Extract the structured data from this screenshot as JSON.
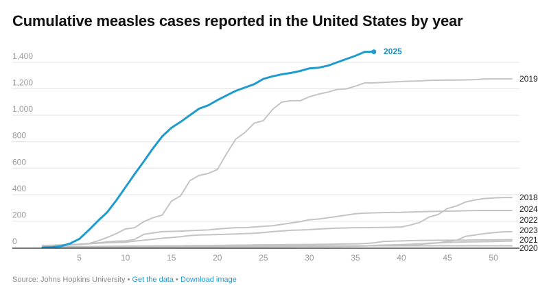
{
  "chart_data": {
    "type": "line",
    "title": "Cumulative measles cases reported in the United States by year",
    "xlabel": "",
    "ylabel": "",
    "xlim": [
      1,
      52
    ],
    "ylim": [
      0,
      1400
    ],
    "x_ticks": [
      "5",
      "10",
      "15",
      "20",
      "25",
      "30",
      "35",
      "40",
      "45",
      "50"
    ],
    "y_ticks": [
      "0",
      "200",
      "400",
      "600",
      "800",
      "1,000",
      "1,200",
      "1,400"
    ],
    "grid": true,
    "highlight_color": "#1f9ccd",
    "other_color": "#c4c4c4",
    "series": [
      {
        "name": "2020",
        "values": [
          2,
          3,
          4,
          5,
          6,
          7,
          8,
          9,
          10,
          11,
          12,
          12,
          12,
          13,
          13,
          13,
          13,
          13,
          13,
          13,
          13,
          13,
          13,
          13,
          13,
          13,
          13,
          13,
          13,
          13,
          13,
          13,
          13,
          13,
          13,
          13,
          13,
          13,
          13,
          13,
          13,
          13,
          13,
          13,
          13,
          13,
          13,
          13,
          13,
          13,
          13,
          13
        ]
      },
      {
        "name": "2021",
        "values": [
          0,
          0,
          1,
          1,
          1,
          2,
          2,
          2,
          2,
          2,
          3,
          3,
          3,
          3,
          3,
          4,
          4,
          4,
          4,
          4,
          5,
          5,
          5,
          5,
          5,
          6,
          6,
          6,
          7,
          7,
          7,
          8,
          8,
          9,
          10,
          12,
          15,
          18,
          20,
          22,
          25,
          28,
          32,
          35,
          38,
          40,
          42,
          43,
          44,
          45,
          47,
          49
        ]
      },
      {
        "name": "2023",
        "values": [
          0,
          1,
          2,
          3,
          4,
          5,
          6,
          7,
          8,
          9,
          10,
          10,
          11,
          12,
          12,
          13,
          14,
          15,
          15,
          16,
          17,
          18,
          18,
          19,
          20,
          20,
          21,
          22,
          22,
          23,
          24,
          25,
          26,
          27,
          28,
          30,
          35,
          45,
          48,
          50,
          52,
          53,
          54,
          55,
          55,
          56,
          56,
          57,
          57,
          57,
          58,
          59
        ]
      },
      {
        "name": "2022",
        "values": [
          2,
          2,
          2,
          3,
          3,
          3,
          3,
          3,
          3,
          4,
          4,
          4,
          4,
          5,
          5,
          5,
          5,
          5,
          5,
          6,
          6,
          6,
          6,
          6,
          7,
          7,
          7,
          8,
          8,
          8,
          9,
          9,
          10,
          11,
          12,
          13,
          14,
          15,
          16,
          18,
          20,
          25,
          30,
          35,
          45,
          55,
          85,
          95,
          105,
          112,
          118,
          120
        ]
      },
      {
        "name": "2024",
        "values": [
          15,
          17,
          20,
          22,
          25,
          28,
          35,
          42,
          48,
          50,
          60,
          100,
          110,
          120,
          122,
          124,
          127,
          130,
          133,
          140,
          145,
          150,
          150,
          155,
          160,
          165,
          175,
          185,
          195,
          210,
          215,
          225,
          235,
          245,
          255,
          260,
          262,
          264,
          265,
          266,
          268,
          270,
          272,
          274,
          275,
          276,
          278,
          280,
          280,
          280,
          280,
          280
        ]
      },
      {
        "name": "2018",
        "values": [
          5,
          8,
          12,
          18,
          22,
          28,
          32,
          36,
          38,
          40,
          48,
          55,
          62,
          70,
          75,
          82,
          90,
          95,
          96,
          98,
          100,
          102,
          105,
          108,
          113,
          120,
          125,
          130,
          132,
          135,
          140,
          143,
          146,
          148,
          150,
          150,
          151,
          152,
          153,
          155,
          170,
          190,
          230,
          250,
          295,
          315,
          345,
          360,
          370,
          375,
          378,
          378
        ]
      },
      {
        "name": "2019",
        "values": [
          10,
          12,
          18,
          22,
          25,
          30,
          50,
          75,
          105,
          140,
          150,
          195,
          225,
          245,
          350,
          390,
          505,
          545,
          560,
          590,
          710,
          820,
          870,
          940,
          960,
          1045,
          1100,
          1110,
          1110,
          1140,
          1160,
          1175,
          1195,
          1200,
          1220,
          1245,
          1245,
          1248,
          1252,
          1255,
          1258,
          1260,
          1264,
          1265,
          1266,
          1266,
          1268,
          1270,
          1274,
          1275,
          1275,
          1275
        ]
      },
      {
        "name": "2025",
        "values": [
          0,
          2,
          10,
          30,
          65,
          130,
          200,
          265,
          355,
          455,
          555,
          650,
          750,
          840,
          905,
          950,
          1000,
          1050,
          1075,
          1115,
          1150,
          1185,
          1210,
          1235,
          1275,
          1295,
          1310,
          1320,
          1335,
          1355,
          1360,
          1375,
          1400,
          1425,
          1450,
          1480,
          1480
        ]
      }
    ]
  },
  "footer": {
    "source": "Source: Johns Hopkins University",
    "separator": " • ",
    "get_data": "Get the data",
    "download": "Download image"
  }
}
